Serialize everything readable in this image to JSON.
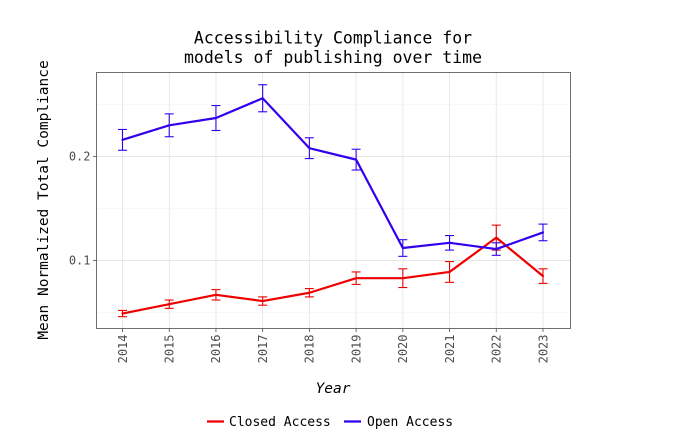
{
  "chart_data": {
    "type": "line",
    "title_lines": [
      "Accessibility Compliance for",
      "models of publishing over time"
    ],
    "xlabel": "Year",
    "ylabel": "Mean Normalized Total Compliance",
    "categories": [
      "2014",
      "2015",
      "2016",
      "2017",
      "2018",
      "2019",
      "2020",
      "2021",
      "2022",
      "2023"
    ],
    "y_ticks": [
      0.1,
      0.2
    ],
    "y_tick_labels": [
      "0.1",
      "0.2"
    ],
    "ylim": [
      0.035,
      0.28
    ],
    "grid": true,
    "legend_position": "bottom",
    "series": [
      {
        "name": "Closed Access",
        "color": "#ee0000",
        "values": [
          0.049,
          0.058,
          0.067,
          0.061,
          0.069,
          0.083,
          0.083,
          0.089,
          0.122,
          0.085
        ],
        "error": [
          0.003,
          0.004,
          0.005,
          0.004,
          0.004,
          0.006,
          0.009,
          0.01,
          0.012,
          0.007
        ]
      },
      {
        "name": "Open Access",
        "color": "#3300ee",
        "values": [
          0.216,
          0.23,
          0.237,
          0.256,
          0.208,
          0.197,
          0.112,
          0.117,
          0.111,
          0.127
        ],
        "error": [
          0.01,
          0.011,
          0.012,
          0.013,
          0.01,
          0.01,
          0.008,
          0.007,
          0.006,
          0.008
        ]
      }
    ]
  }
}
